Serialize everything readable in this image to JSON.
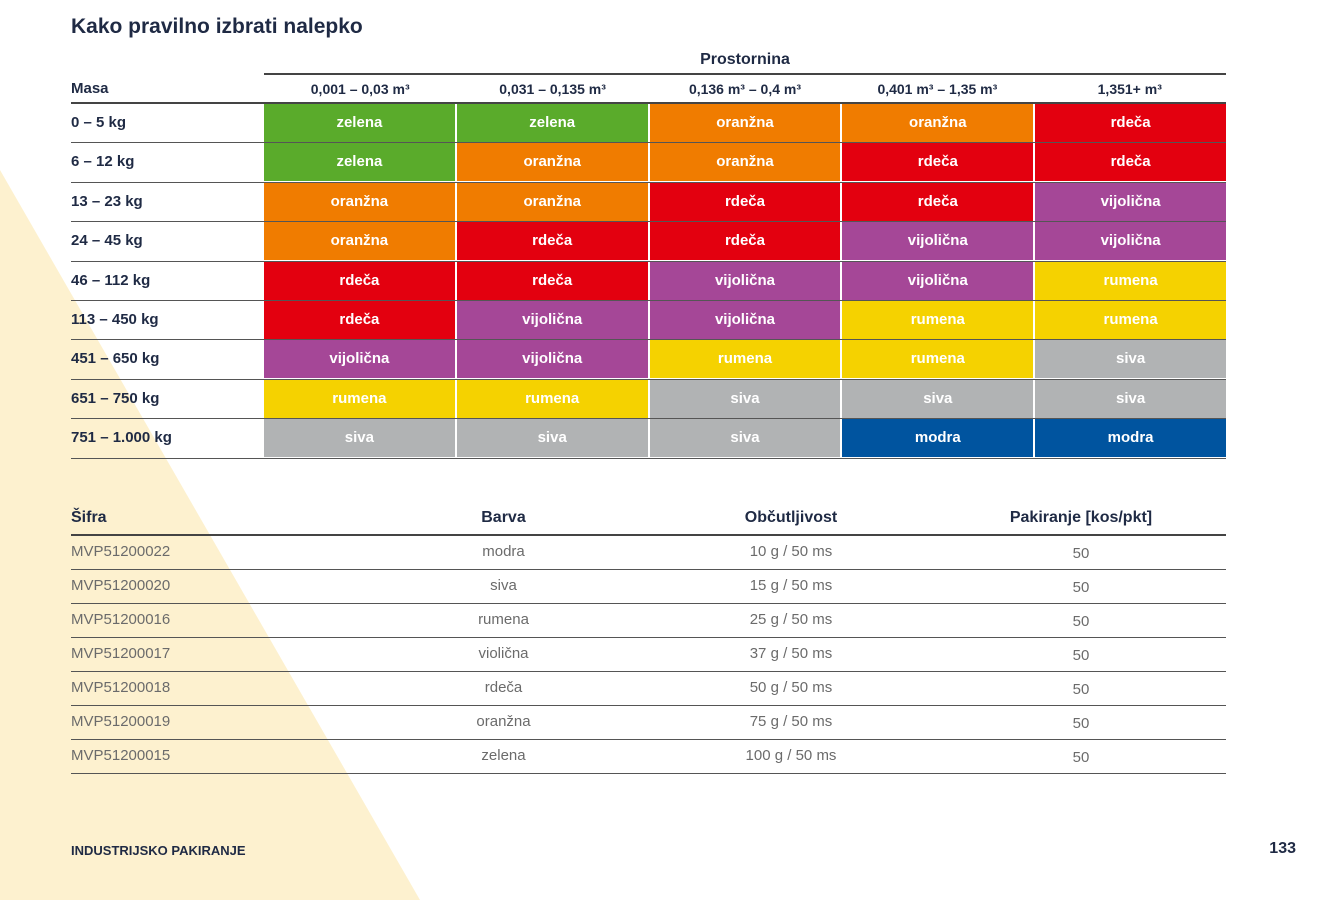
{
  "title": "Kako pravilno izbrati nalepko",
  "matrix": {
    "volume_title": "Prostornina",
    "mass_header": "Masa",
    "volume_ranges": [
      "0,001 – 0,03 m³",
      "0,031 – 0,135 m³",
      "0,136 m³ – 0,4 m³",
      "0,401 m³ – 1,35 m³",
      "1,351+ m³"
    ],
    "rows": [
      {
        "mass": "0 – 5 kg",
        "cells": [
          {
            "label": "zelena",
            "key": "zelena"
          },
          {
            "label": "zelena",
            "key": "zelena"
          },
          {
            "label": "oranžna",
            "key": "oranzna"
          },
          {
            "label": "oranžna",
            "key": "oranzna"
          },
          {
            "label": "rdeča",
            "key": "rdeca"
          }
        ]
      },
      {
        "mass": "6 – 12 kg",
        "cells": [
          {
            "label": "zelena",
            "key": "zelena"
          },
          {
            "label": "oranžna",
            "key": "oranzna"
          },
          {
            "label": "oranžna",
            "key": "oranzna"
          },
          {
            "label": "rdeča",
            "key": "rdeca"
          },
          {
            "label": "rdeča",
            "key": "rdeca"
          }
        ]
      },
      {
        "mass": "13 – 23 kg",
        "cells": [
          {
            "label": "oranžna",
            "key": "oranzna"
          },
          {
            "label": "oranžna",
            "key": "oranzna"
          },
          {
            "label": "rdeča",
            "key": "rdeca"
          },
          {
            "label": "rdeča",
            "key": "rdeca"
          },
          {
            "label": "vijolična",
            "key": "vijolicna"
          }
        ]
      },
      {
        "mass": "24 – 45 kg",
        "cells": [
          {
            "label": "oranžna",
            "key": "oranzna"
          },
          {
            "label": "rdeča",
            "key": "rdeca"
          },
          {
            "label": "rdeča",
            "key": "rdeca"
          },
          {
            "label": "vijolična",
            "key": "vijolicna"
          },
          {
            "label": "vijolična",
            "key": "vijolicna"
          }
        ]
      },
      {
        "mass": "46 – 112 kg",
        "cells": [
          {
            "label": "rdeča",
            "key": "rdeca"
          },
          {
            "label": "rdeča",
            "key": "rdeca"
          },
          {
            "label": "vijolična",
            "key": "vijolicna"
          },
          {
            "label": "vijolična",
            "key": "vijolicna"
          },
          {
            "label": "rumena",
            "key": "rumena"
          }
        ]
      },
      {
        "mass": "113 – 450 kg",
        "cells": [
          {
            "label": "rdeča",
            "key": "rdeca"
          },
          {
            "label": "vijolična",
            "key": "vijolicna"
          },
          {
            "label": "vijolična",
            "key": "vijolicna"
          },
          {
            "label": "rumena",
            "key": "rumena"
          },
          {
            "label": "rumena",
            "key": "rumena"
          }
        ]
      },
      {
        "mass": "451 – 650 kg",
        "cells": [
          {
            "label": "vijolična",
            "key": "vijolicna"
          },
          {
            "label": "vijolična",
            "key": "vijolicna"
          },
          {
            "label": "rumena",
            "key": "rumena"
          },
          {
            "label": "rumena",
            "key": "rumena"
          },
          {
            "label": "siva",
            "key": "siva"
          }
        ]
      },
      {
        "mass": "651 – 750 kg",
        "cells": [
          {
            "label": "rumena",
            "key": "rumena"
          },
          {
            "label": "rumena",
            "key": "rumena"
          },
          {
            "label": "siva",
            "key": "siva"
          },
          {
            "label": "siva",
            "key": "siva"
          },
          {
            "label": "siva",
            "key": "siva"
          }
        ]
      },
      {
        "mass": "751 – 1.000 kg",
        "cells": [
          {
            "label": "siva",
            "key": "siva"
          },
          {
            "label": "siva",
            "key": "siva"
          },
          {
            "label": "siva",
            "key": "siva"
          },
          {
            "label": "modra",
            "key": "modra"
          },
          {
            "label": "modra",
            "key": "modra"
          }
        ]
      }
    ]
  },
  "products": {
    "headers": {
      "sku": "Šifra",
      "color": "Barva",
      "sensitivity": "Občutljivost",
      "packaging": "Pakiranje [kos/pkt]"
    },
    "rows": [
      {
        "sku": "MVP51200022",
        "color": "modra",
        "sensitivity": "10 g / 50 ms",
        "packaging": "50"
      },
      {
        "sku": "MVP51200020",
        "color": "siva",
        "sensitivity": "15 g / 50 ms",
        "packaging": "50"
      },
      {
        "sku": "MVP51200016",
        "color": "rumena",
        "sensitivity": "25 g / 50 ms",
        "packaging": "50"
      },
      {
        "sku": "MVP51200017",
        "color": "violična",
        "sensitivity": "37 g / 50 ms",
        "packaging": "50"
      },
      {
        "sku": "MVP51200018",
        "color": "rdeča",
        "sensitivity": "50 g / 50 ms",
        "packaging": "50"
      },
      {
        "sku": "MVP51200019",
        "color": "oranžna",
        "sensitivity": "75 g / 50 ms",
        "packaging": "50"
      },
      {
        "sku": "MVP51200015",
        "color": "zelena",
        "sensitivity": "100 g / 50 ms",
        "packaging": "50"
      }
    ]
  },
  "footer": {
    "section": "INDUSTRIJSKO PAKIRANJE",
    "page_number": "133"
  },
  "colors": {
    "zelena": "#5aab2b",
    "oranzna": "#f07c00",
    "rdeca": "#e3000f",
    "vijolicna": "#a54797",
    "rumena": "#f5d200",
    "siva": "#b1b3b4",
    "modra": "#00549f",
    "background_triangle": "#fdf1cf",
    "text": "#1f2a44"
  }
}
